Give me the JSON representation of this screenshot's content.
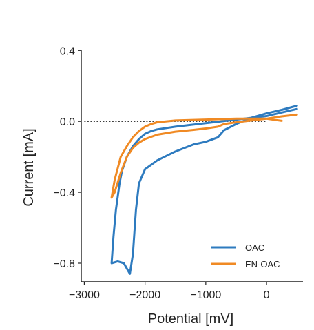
{
  "chart_data": {
    "type": "line",
    "xlabel": "Potential [mV]",
    "ylabel": "Current [mA]",
    "xlim": [
      -3050,
      600
    ],
    "ylim": [
      -0.905,
      0.405
    ],
    "xticks": [
      -3000,
      -2000,
      -1000,
      0
    ],
    "xtick_labels": [
      "−3000",
      "−2000",
      "−1000",
      "0"
    ],
    "yticks": [
      0.4,
      0.0,
      -0.4,
      -0.8
    ],
    "ytick_labels": [
      "0.4",
      "0.0",
      "−0.4",
      "−0.8"
    ],
    "reference_line": {
      "y": 0.0,
      "x": [
        -3000,
        0
      ],
      "style": "dotted"
    },
    "legend": {
      "position": "lower-right"
    },
    "series": [
      {
        "name": "OAC",
        "color": "#2e7bbf",
        "x": [
          500,
          250,
          0,
          -250,
          -500,
          -700,
          -800,
          -1000,
          -1200,
          -1500,
          -1800,
          -2000,
          -2100,
          -2150,
          -2200,
          -2250,
          -2350,
          -2450,
          -2550,
          -2520,
          -2480,
          -2420,
          -2380,
          -2300,
          -2200,
          -2100,
          -2000,
          -1900,
          -1800,
          -1500,
          -1000,
          -500,
          0,
          250,
          500
        ],
        "y": [
          0.088,
          0.065,
          0.045,
          0.02,
          -0.015,
          -0.05,
          -0.09,
          -0.115,
          -0.13,
          -0.17,
          -0.22,
          -0.27,
          -0.35,
          -0.5,
          -0.75,
          -0.86,
          -0.8,
          -0.79,
          -0.8,
          -0.65,
          -0.5,
          -0.35,
          -0.28,
          -0.2,
          -0.14,
          -0.1,
          -0.07,
          -0.055,
          -0.045,
          -0.03,
          -0.01,
          0.01,
          0.03,
          0.05,
          0.07
        ]
      },
      {
        "name": "EN-OAC",
        "color": "#f08a24",
        "x": [
          500,
          250,
          0,
          -500,
          -700,
          -800,
          -1000,
          -1200,
          -1500,
          -1800,
          -2000,
          -2100,
          -2200,
          -2300,
          -2400,
          -2500,
          -2550,
          -2500,
          -2400,
          -2300,
          -2200,
          -2100,
          -2000,
          -1900,
          -1800,
          -1500,
          -1000,
          -500,
          0,
          250
        ],
        "y": [
          0.038,
          0.028,
          0.015,
          -0.005,
          -0.015,
          -0.03,
          -0.04,
          -0.048,
          -0.058,
          -0.075,
          -0.1,
          -0.12,
          -0.15,
          -0.2,
          -0.29,
          -0.4,
          -0.43,
          -0.33,
          -0.2,
          -0.14,
          -0.09,
          -0.055,
          -0.03,
          -0.015,
          -0.005,
          0.005,
          0.01,
          0.015,
          0.015,
          0.003
        ]
      }
    ]
  }
}
